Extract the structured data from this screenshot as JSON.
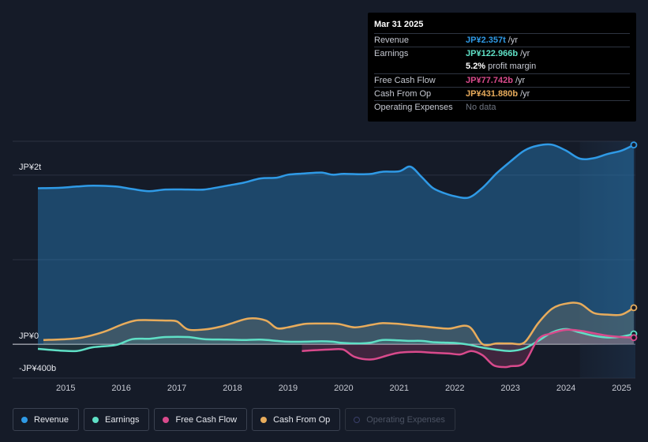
{
  "tooltip": {
    "date": "Mar 31 2025",
    "rows": [
      {
        "label": "Revenue",
        "value": "JP¥2.357t",
        "suffix": "/yr",
        "color": "#2f9ae6"
      },
      {
        "label": "Earnings",
        "value": "JP¥122.966b",
        "suffix": "/yr",
        "color": "#5fe0c6"
      },
      {
        "label": "",
        "value": "5.2%",
        "suffix": "profit margin",
        "color": "#ffffff"
      },
      {
        "label": "Free Cash Flow",
        "value": "JP¥77.742b",
        "suffix": "/yr",
        "color": "#d94a8c"
      },
      {
        "label": "Cash From Op",
        "value": "JP¥431.880b",
        "suffix": "/yr",
        "color": "#e8ac5c"
      },
      {
        "label": "Operating Expenses",
        "value": "No data",
        "suffix": "",
        "color": "#6f7582"
      }
    ]
  },
  "legend": [
    {
      "label": "Revenue",
      "color": "#2f9ae6",
      "enabled": true
    },
    {
      "label": "Earnings",
      "color": "#5fe0c6",
      "enabled": true
    },
    {
      "label": "Free Cash Flow",
      "color": "#d94a8c",
      "enabled": true
    },
    {
      "label": "Cash From Op",
      "color": "#e8ac5c",
      "enabled": true
    },
    {
      "label": "Operating Expenses",
      "color": "#3a3f6a",
      "enabled": false
    }
  ],
  "chart_data": {
    "type": "area",
    "y_unit": "JP¥ billions",
    "ylim": [
      -400,
      2400
    ],
    "y_tick_labels": [
      {
        "value": 2000,
        "label": "JP¥2t"
      },
      {
        "value": 0,
        "label": "JP¥0"
      },
      {
        "value": -400,
        "label": "-JP¥400b"
      }
    ],
    "x_ticks": [
      2015,
      2016,
      2017,
      2018,
      2019,
      2020,
      2021,
      2022,
      2023,
      2024,
      2025
    ],
    "xlim": [
      2014.42,
      2025.22
    ],
    "forecast_start": 2024.25,
    "series": [
      {
        "name": "Revenue",
        "color": "#2f9ae6",
        "x": [
          2014.5,
          2014.9,
          2015.2,
          2015.5,
          2015.9,
          2016.2,
          2016.5,
          2016.8,
          2017.2,
          2017.5,
          2017.9,
          2018.2,
          2018.5,
          2018.8,
          2019.0,
          2019.3,
          2019.6,
          2019.8,
          2020.0,
          2020.3,
          2020.5,
          2020.7,
          2021.0,
          2021.2,
          2021.4,
          2021.6,
          2021.8,
          2022.0,
          2022.25,
          2022.5,
          2022.75,
          2023.0,
          2023.25,
          2023.5,
          2023.75,
          2024.0,
          2024.25,
          2024.5,
          2024.75,
          2025.0,
          2025.22
        ],
        "values": [
          1845,
          1850,
          1865,
          1875,
          1865,
          1835,
          1810,
          1830,
          1830,
          1830,
          1875,
          1910,
          1960,
          1970,
          2005,
          2020,
          2030,
          2005,
          2015,
          2010,
          2015,
          2040,
          2045,
          2100,
          1980,
          1850,
          1790,
          1750,
          1735,
          1850,
          2020,
          2160,
          2290,
          2350,
          2360,
          2290,
          2195,
          2200,
          2250,
          2290,
          2357
        ]
      },
      {
        "name": "Earnings",
        "color": "#5fe0c6",
        "x": [
          2014.5,
          2014.9,
          2015.2,
          2015.5,
          2015.9,
          2016.2,
          2016.5,
          2016.8,
          2017.2,
          2017.5,
          2017.9,
          2018.2,
          2018.5,
          2018.8,
          2019.0,
          2019.3,
          2019.6,
          2019.8,
          2020.0,
          2020.3,
          2020.5,
          2020.7,
          2021.0,
          2021.2,
          2021.4,
          2021.6,
          2021.8,
          2022.0,
          2022.25,
          2022.5,
          2022.75,
          2023.0,
          2023.25,
          2023.5,
          2023.75,
          2024.0,
          2024.25,
          2024.5,
          2024.75,
          2025.0,
          2025.22
        ],
        "values": [
          -55,
          -75,
          -80,
          -35,
          -10,
          60,
          65,
          85,
          85,
          60,
          55,
          50,
          55,
          40,
          30,
          30,
          35,
          30,
          15,
          10,
          20,
          50,
          45,
          40,
          40,
          25,
          20,
          15,
          -5,
          -40,
          -65,
          -80,
          -50,
          40,
          140,
          180,
          140,
          100,
          80,
          90,
          123
        ]
      },
      {
        "name": "Free Cash Flow",
        "color": "#d94a8c",
        "x": [
          2019.25,
          2019.5,
          2019.8,
          2020.0,
          2020.2,
          2020.5,
          2020.8,
          2021.0,
          2021.3,
          2021.6,
          2021.9,
          2022.1,
          2022.3,
          2022.5,
          2022.7,
          2022.9,
          2023.0,
          2023.25,
          2023.5,
          2023.75,
          2024.0,
          2024.25,
          2024.5,
          2024.75,
          2025.0,
          2025.22
        ],
        "values": [
          -80,
          -70,
          -60,
          -65,
          -150,
          -180,
          -130,
          -100,
          -90,
          -100,
          -110,
          -120,
          -80,
          -130,
          -250,
          -270,
          -260,
          -220,
          60,
          130,
          170,
          160,
          130,
          100,
          85,
          78
        ]
      },
      {
        "name": "Cash From Op",
        "color": "#e8ac5c",
        "x": [
          2014.6,
          2015.0,
          2015.3,
          2015.7,
          2016.0,
          2016.25,
          2016.5,
          2016.8,
          2017.0,
          2017.2,
          2017.5,
          2017.8,
          2018.0,
          2018.3,
          2018.6,
          2018.8,
          2019.0,
          2019.3,
          2019.6,
          2019.9,
          2020.2,
          2020.5,
          2020.7,
          2021.0,
          2021.3,
          2021.6,
          2021.9,
          2022.25,
          2022.5,
          2022.75,
          2023.0,
          2023.25,
          2023.5,
          2023.75,
          2024.0,
          2024.25,
          2024.5,
          2024.75,
          2025.0,
          2025.22
        ],
        "values": [
          50,
          60,
          80,
          150,
          230,
          280,
          285,
          280,
          270,
          175,
          175,
          210,
          250,
          305,
          280,
          190,
          200,
          240,
          245,
          240,
          200,
          230,
          250,
          240,
          220,
          200,
          185,
          210,
          0,
          10,
          10,
          20,
          250,
          420,
          480,
          480,
          370,
          350,
          350,
          432
        ]
      }
    ]
  }
}
